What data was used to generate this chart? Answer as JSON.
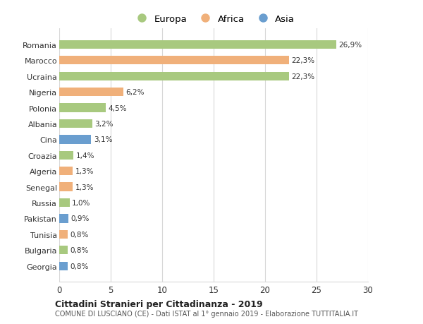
{
  "countries": [
    "Romania",
    "Marocco",
    "Ucraina",
    "Nigeria",
    "Polonia",
    "Albania",
    "Cina",
    "Croazia",
    "Algeria",
    "Senegal",
    "Russia",
    "Pakistan",
    "Tunisia",
    "Bulgaria",
    "Georgia"
  ],
  "values": [
    26.9,
    22.3,
    22.3,
    6.2,
    4.5,
    3.2,
    3.1,
    1.4,
    1.3,
    1.3,
    1.0,
    0.9,
    0.8,
    0.8,
    0.8
  ],
  "labels": [
    "26,9%",
    "22,3%",
    "22,3%",
    "6,2%",
    "4,5%",
    "3,2%",
    "3,1%",
    "1,4%",
    "1,3%",
    "1,3%",
    "1,0%",
    "0,9%",
    "0,8%",
    "0,8%",
    "0,8%"
  ],
  "continents": [
    "Europa",
    "Africa",
    "Europa",
    "Africa",
    "Europa",
    "Europa",
    "Asia",
    "Europa",
    "Africa",
    "Africa",
    "Europa",
    "Asia",
    "Africa",
    "Europa",
    "Asia"
  ],
  "colors": {
    "Europa": "#a8c97f",
    "Africa": "#f0b07a",
    "Asia": "#6a9ecf"
  },
  "title": "Cittadini Stranieri per Cittadinanza - 2019",
  "subtitle": "COMUNE DI LUSCIANO (CE) - Dati ISTAT al 1° gennaio 2019 - Elaborazione TUTTITALIA.IT",
  "xlim": [
    0,
    30
  ],
  "xticks": [
    0,
    5,
    10,
    15,
    20,
    25,
    30
  ],
  "background_color": "#ffffff",
  "grid_color": "#d8d8d8"
}
